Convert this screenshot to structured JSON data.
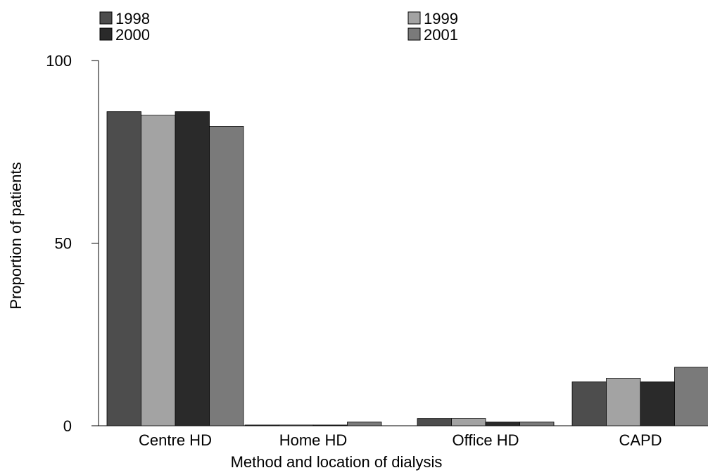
{
  "chart_data": {
    "type": "bar",
    "title": "",
    "xlabel": "Method and location of dialysis",
    "ylabel": "Proportion of patients",
    "ylim": [
      0,
      100
    ],
    "yticks": [
      0,
      50,
      100
    ],
    "grid": false,
    "legend_position": "top",
    "categories": [
      "Centre HD",
      "Home HD",
      "Office HD",
      "CAPD"
    ],
    "series": [
      {
        "name": "1998",
        "color": "#4d4d4d",
        "values": [
          86,
          0.2,
          2,
          12
        ]
      },
      {
        "name": "1999",
        "color": "#a3a3a3",
        "values": [
          85,
          0.2,
          2,
          13
        ]
      },
      {
        "name": "2000",
        "color": "#2a2a2a",
        "values": [
          86,
          0.2,
          1,
          12
        ]
      },
      {
        "name": "2001",
        "color": "#7a7a7a",
        "values": [
          82,
          1,
          1,
          16
        ]
      }
    ]
  }
}
